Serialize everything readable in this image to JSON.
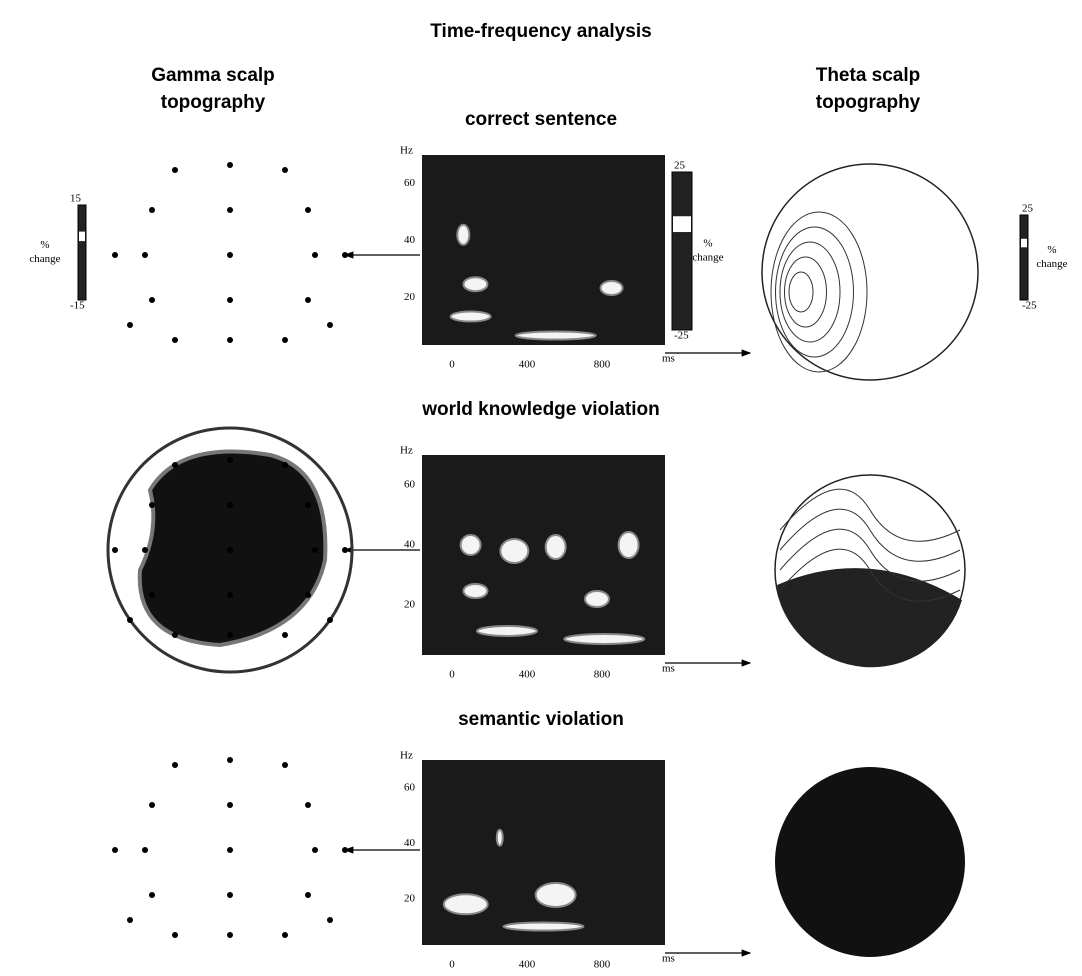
{
  "title": "Time-frequency analysis",
  "columns": {
    "left": [
      "Gamma scalp",
      "topography"
    ],
    "right": [
      "Theta scalp",
      "topography"
    ]
  },
  "spectrogram_axes": {
    "y_unit": "Hz",
    "y_ticks": [
      "60",
      "40",
      "20"
    ],
    "x_ticks": [
      "0",
      "400",
      "800"
    ],
    "x_unit": "ms"
  },
  "colorbars": {
    "gamma": {
      "max": "15",
      "label": [
        "%",
        "change"
      ],
      "min": "-15"
    },
    "spectrogram": {
      "max": "25",
      "label": [
        "%",
        "change"
      ],
      "min": "-25"
    },
    "theta": {
      "max": "25",
      "label": [
        "%",
        "change"
      ],
      "min": "-25"
    }
  },
  "rows": [
    {
      "title": "correct sentence"
    },
    {
      "title": "world knowledge violation"
    },
    {
      "title": "semantic violation"
    }
  ]
}
